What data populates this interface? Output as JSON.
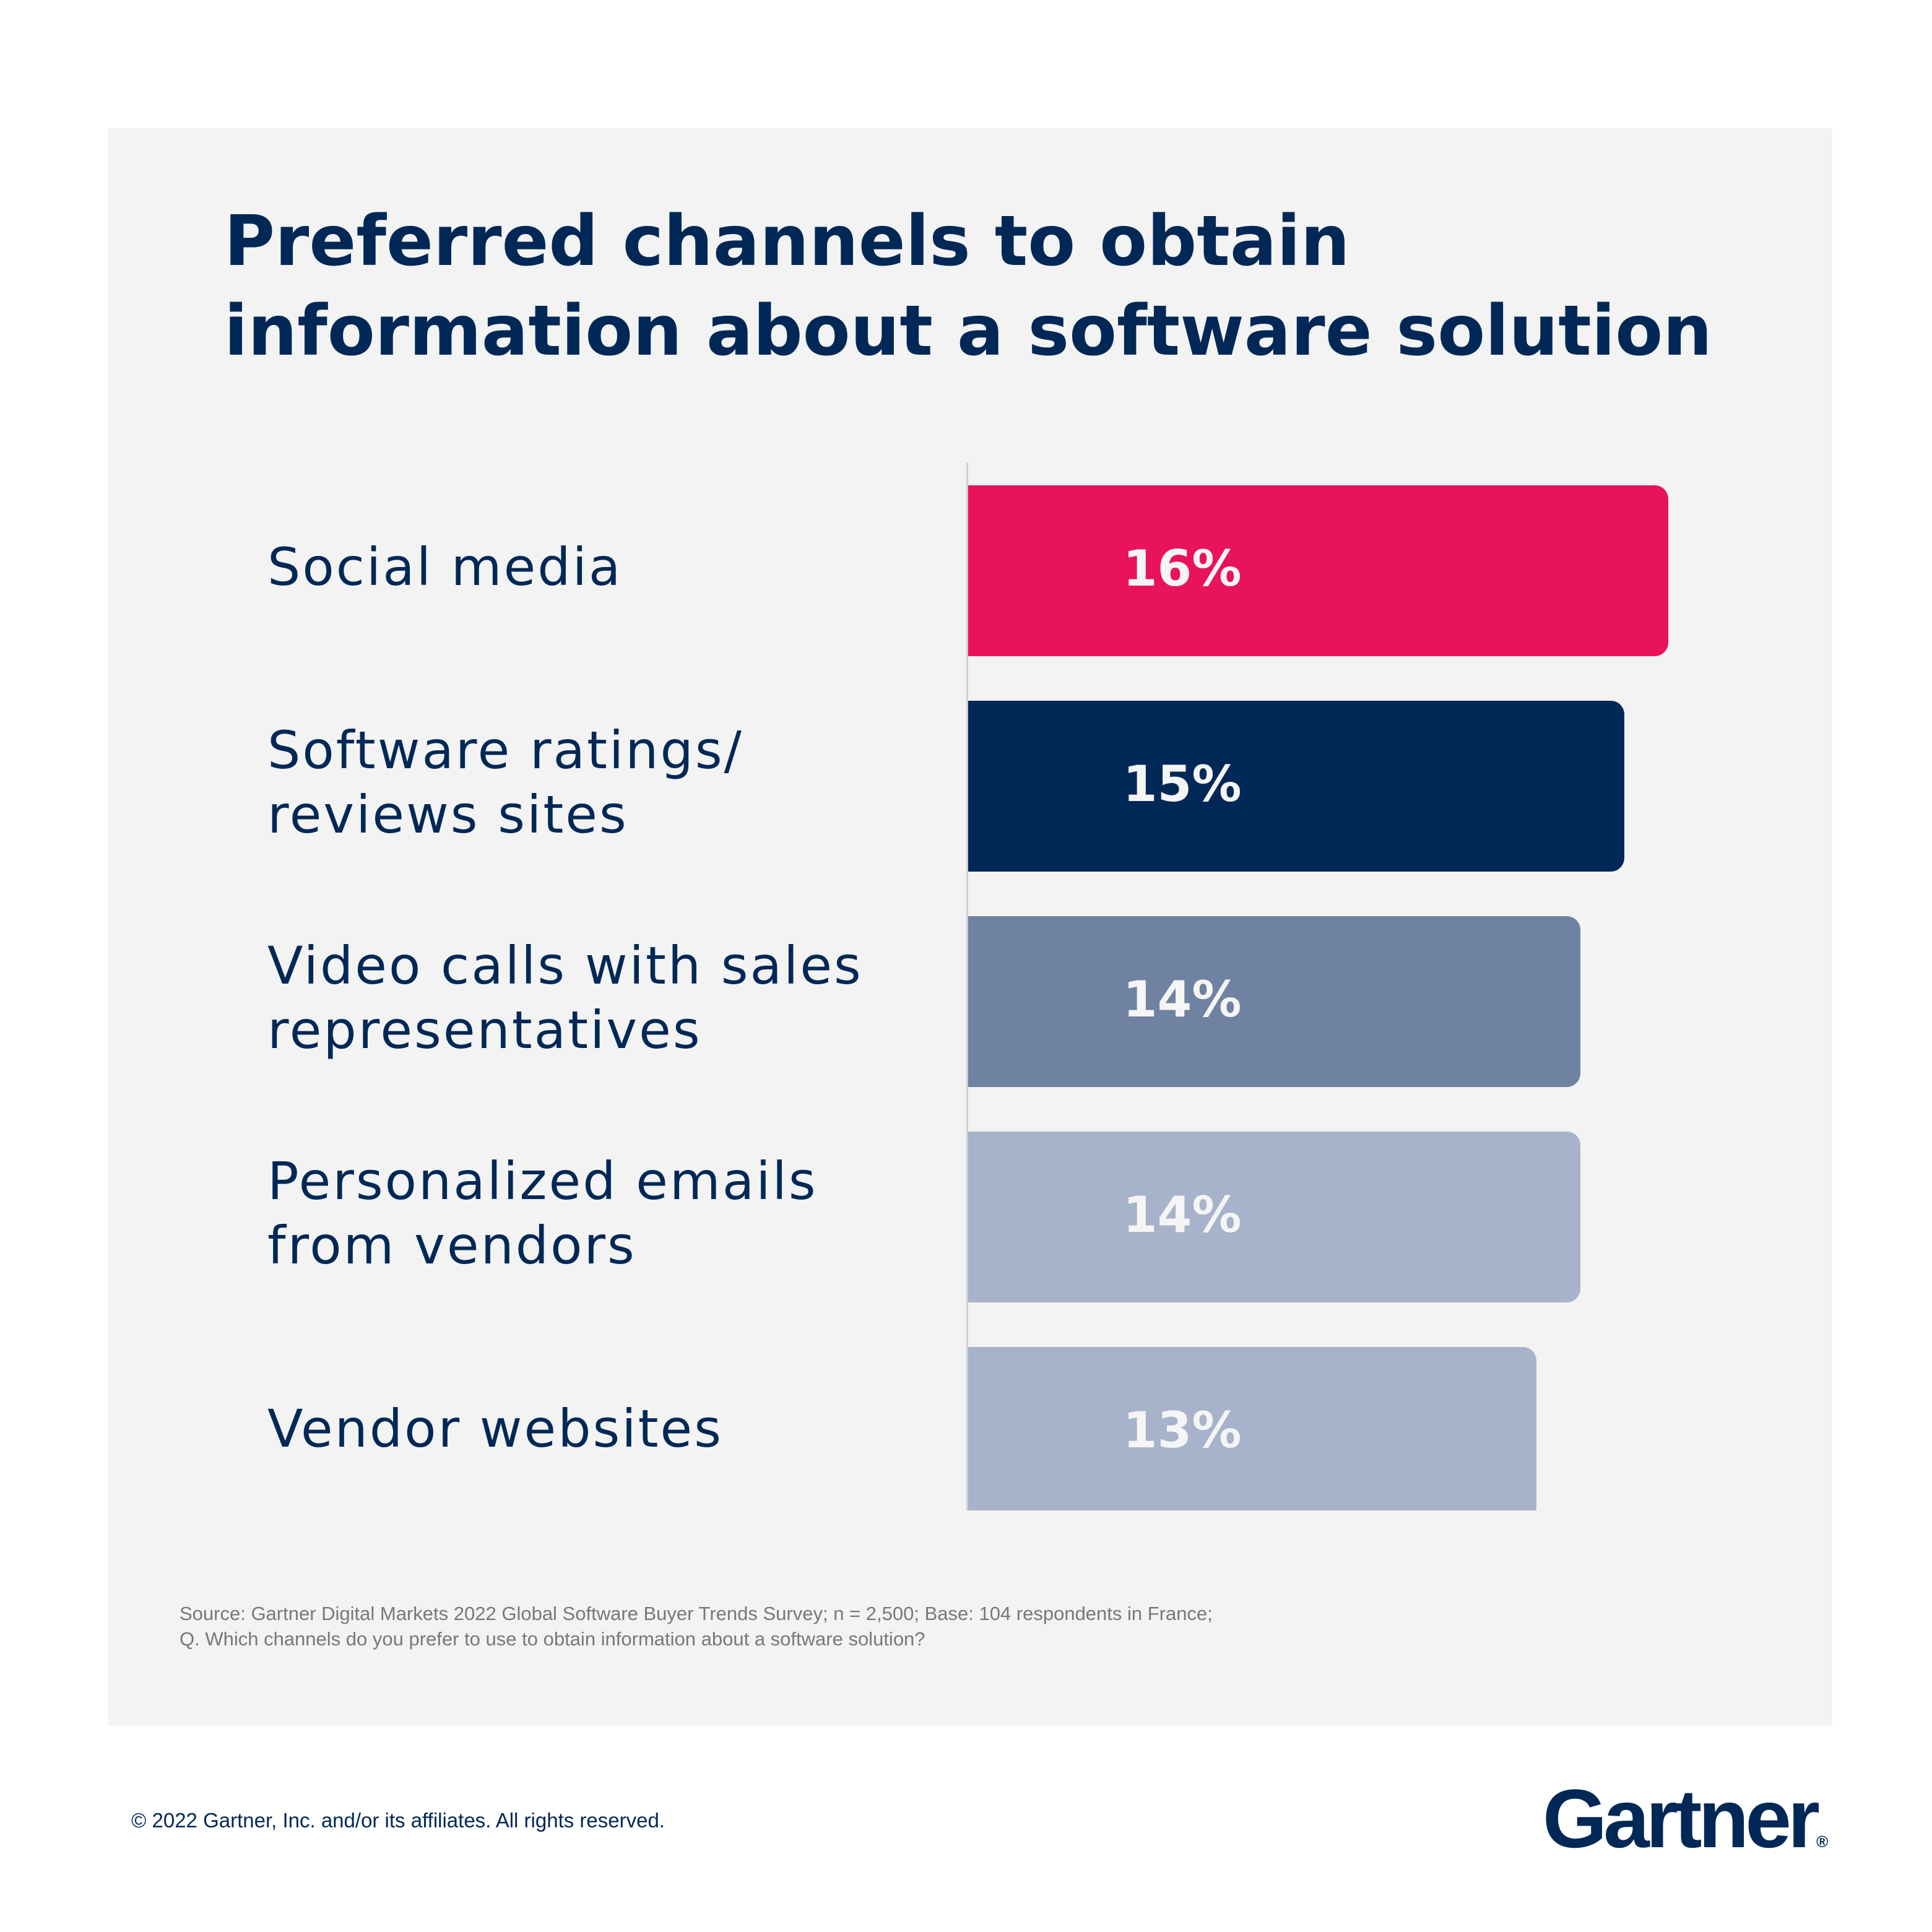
{
  "chart_data": {
    "type": "bar",
    "orientation": "horizontal",
    "title": "Preferred channels to obtain information about a software solution",
    "categories": [
      "Social media",
      "Software ratings/ reviews sites",
      "Video calls with sales representatives",
      "Personalized emails from vendors",
      "Vendor websites"
    ],
    "category_lines": [
      [
        "Social media"
      ],
      [
        "Software ratings/",
        "reviews sites"
      ],
      [
        "Video calls with sales",
        "representatives"
      ],
      [
        "Personalized emails",
        "from vendors"
      ],
      [
        "Vendor websites"
      ]
    ],
    "values": [
      16,
      15,
      14,
      14,
      13
    ],
    "value_labels": [
      "16%",
      "15%",
      "14%",
      "14%",
      "13%"
    ],
    "unit": "%",
    "colors": [
      "#e8135a",
      "#002856",
      "#6f82a1",
      "#a7b3ca",
      "#a7b3ca"
    ],
    "grid": false,
    "legend": "none"
  },
  "source": [
    "Source: Gartner Digital Markets 2022 Global Software Buyer Trends Survey; n = 2,500; Base: 104 respondents in France;",
    "Q. Which channels do you prefer to use to obtain information about a software solution?"
  ],
  "footer": {
    "copyright": "© 2022 Gartner, Inc. and/or its affiliates. All rights reserved.",
    "logo": "Gartner",
    "logo_mark": "®"
  }
}
